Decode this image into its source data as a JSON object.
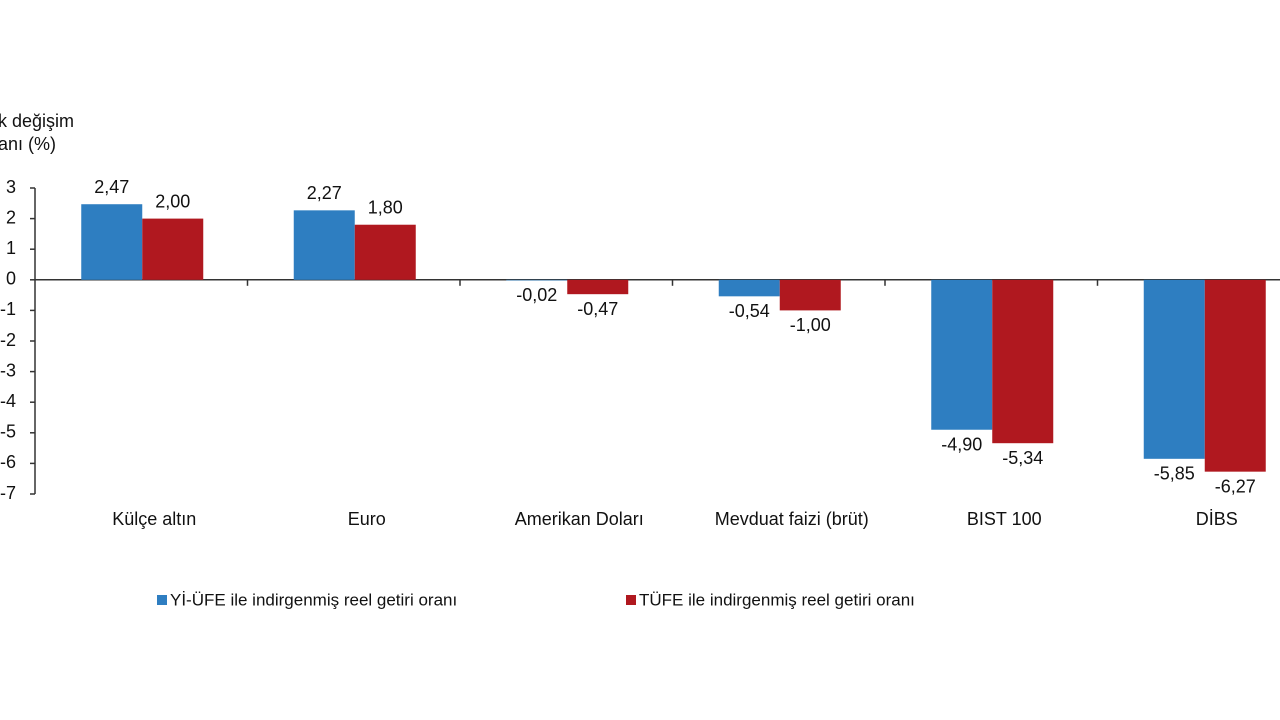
{
  "chart_data": {
    "type": "bar",
    "y_label": [
      "k değişim",
      "anı (%)"
    ],
    "categories": [
      "Külçe altın",
      "Euro",
      "Amerikan Doları",
      "Mevduat faizi (brüt)",
      "BIST 100",
      "DİBS"
    ],
    "series": [
      {
        "name": "Yİ-ÜFE ile indirgenmiş reel getiri oranı",
        "color": "#2e7ec1",
        "values": [
          2.47,
          2.27,
          -0.02,
          -0.54,
          -4.9,
          -5.85
        ],
        "value_labels": [
          "2,47",
          "2,27",
          "-0,02",
          "-0,54",
          "-4,90",
          "-5,85"
        ]
      },
      {
        "name": "TÜFE ile indirgenmiş reel getiri oranı",
        "color": "#b0181f",
        "values": [
          2.0,
          1.8,
          -0.47,
          -1.0,
          -5.34,
          -6.27
        ],
        "value_labels": [
          "2,00",
          "1,80",
          "-0,47",
          "-1,00",
          "-5,34",
          "-6,27"
        ]
      }
    ],
    "ylim": [
      -7,
      3
    ],
    "yticks": [
      -7,
      -6,
      -5,
      -4,
      -3,
      -2,
      -1,
      0,
      1,
      2,
      3
    ]
  }
}
